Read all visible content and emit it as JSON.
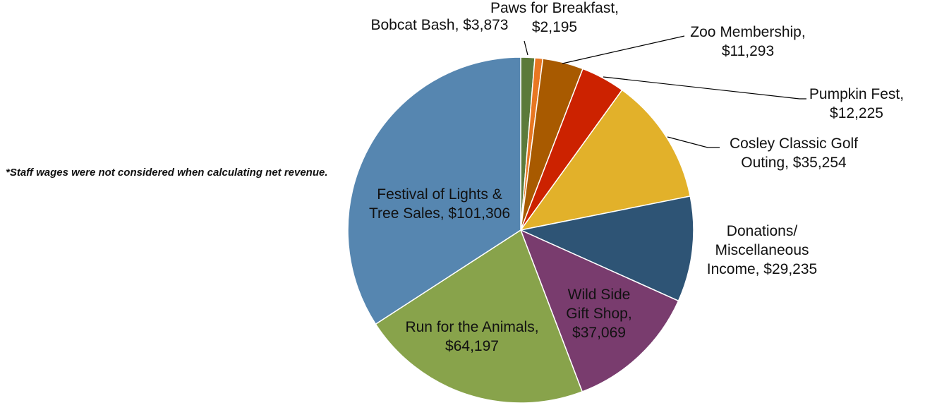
{
  "chart_data": {
    "type": "pie",
    "title": "",
    "note": "*Staff wages were not considered when calculating net revenue.",
    "slices": [
      {
        "label": [
          "Bobcat Bash, $3,873"
        ],
        "name": "Bobcat Bash",
        "value": 3873,
        "color": "#5b7a3a"
      },
      {
        "label": [
          "Paws for Breakfast,",
          "$2,195"
        ],
        "name": "Paws for Breakfast",
        "value": 2195,
        "color": "#e87722"
      },
      {
        "label": [
          "Zoo Membership,",
          "$11,293"
        ],
        "name": "Zoo Membership",
        "value": 11293,
        "color": "#a85a00"
      },
      {
        "label": [
          "Pumpkin Fest,",
          "$12,225"
        ],
        "name": "Pumpkin Fest",
        "value": 12225,
        "color": "#cc2200"
      },
      {
        "label": [
          "Cosley Classic Golf",
          "Outing, $35,254"
        ],
        "name": "Cosley Classic Golf Outing",
        "value": 35254,
        "color": "#e2b12a"
      },
      {
        "label": [
          "Donations/",
          "Miscellaneous",
          "Income, $29,235"
        ],
        "name": "Donations/Miscellaneous Income",
        "value": 29235,
        "color": "#2e5475"
      },
      {
        "label": [
          "Wild Side",
          "Gift Shop,",
          "$37,069"
        ],
        "name": "Wild Side Gift Shop",
        "value": 37069,
        "color": "#793c6e"
      },
      {
        "label": [
          "Run for the Animals,",
          "$64,197"
        ],
        "name": "Run for the Animals",
        "value": 64197,
        "color": "#88a34b"
      },
      {
        "label": [
          "Festival of Lights &",
          "Tree Sales, $101,306"
        ],
        "name": "Festival of Lights & Tree Sales",
        "value": 101306,
        "color": "#5686b0"
      }
    ]
  }
}
